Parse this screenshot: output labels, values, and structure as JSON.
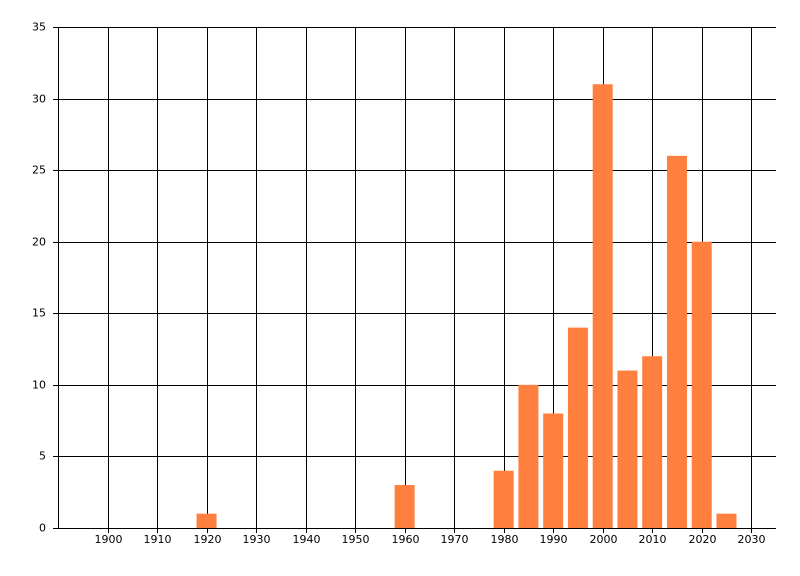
{
  "chart_data": {
    "type": "bar",
    "x": [
      1920,
      1960,
      1980,
      1985,
      1990,
      1995,
      2000,
      2005,
      2010,
      2015,
      2020,
      2025
    ],
    "values": [
      1,
      3,
      4,
      10,
      8,
      14,
      31,
      11,
      12,
      26,
      20,
      1
    ],
    "color": "#ff7f3f",
    "xlim": [
      1890,
      2035
    ],
    "xticks": [
      1900,
      1910,
      1920,
      1930,
      1940,
      1950,
      1960,
      1970,
      1980,
      1990,
      2000,
      2010,
      2020,
      2030
    ],
    "ylim": [
      0,
      35
    ],
    "yticks": [
      0,
      5,
      10,
      15,
      20,
      25,
      30,
      35
    ],
    "grid": true
  }
}
